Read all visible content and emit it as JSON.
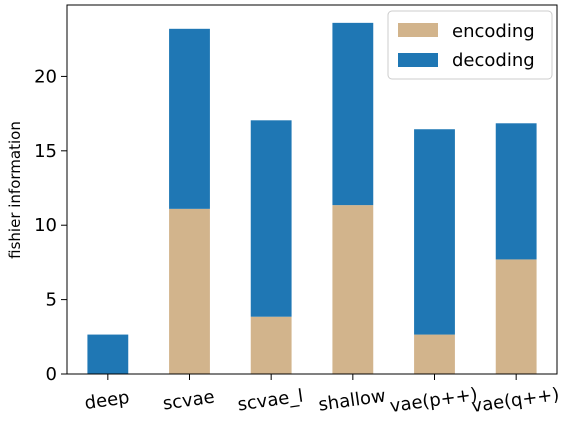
{
  "chart_data": {
    "type": "bar",
    "stacked": true,
    "categories": [
      "deep",
      "scvae",
      "scvae_l",
      "shallow",
      "vae(p++)",
      "vae(q++)"
    ],
    "series": [
      {
        "name": "encoding",
        "values": [
          0.0,
          11.1,
          3.85,
          11.35,
          2.65,
          7.7
        ],
        "color": "#d2b48c"
      },
      {
        "name": "decoding",
        "values": [
          2.65,
          12.1,
          13.2,
          12.25,
          13.8,
          9.15
        ],
        "color": "#1f77b4"
      }
    ],
    "xlabel": "",
    "ylabel": "fishier information",
    "ylim": [
      0,
      24.8
    ],
    "yticks": [
      0,
      5,
      10,
      15,
      20
    ],
    "grid": false,
    "legend_position": "top-right"
  }
}
